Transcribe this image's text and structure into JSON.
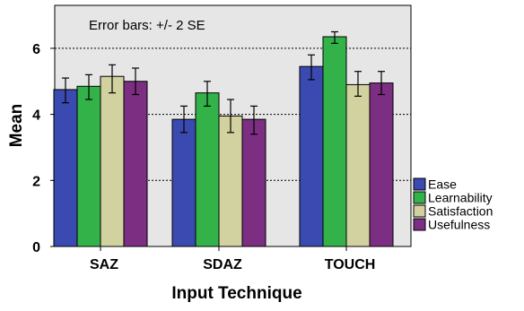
{
  "chart_data": {
    "type": "bar",
    "title": "",
    "annotation": "Error bars: +/- 2 SE",
    "xlabel": "Input Technique",
    "ylabel": "Mean",
    "categories": [
      "SAZ",
      "SDAZ",
      "TOUCH"
    ],
    "ylim": [
      0,
      7.3
    ],
    "yticks": [
      0,
      2,
      4,
      6
    ],
    "gridlines": [
      2,
      4,
      6
    ],
    "grid": "dashed horizontal",
    "legend_position": "right",
    "series": [
      {
        "name": "Ease",
        "color": "#3b4ab0",
        "values": [
          4.75,
          3.85,
          5.45
        ],
        "err_low": [
          4.35,
          3.45,
          5.05
        ],
        "err_high": [
          5.1,
          4.25,
          5.8
        ]
      },
      {
        "name": "Learnability",
        "color": "#34b24a",
        "values": [
          4.85,
          4.65,
          6.35
        ],
        "err_low": [
          4.45,
          4.25,
          6.15
        ],
        "err_high": [
          5.2,
          5.0,
          6.5
        ]
      },
      {
        "name": "Satisfaction",
        "color": "#d2d2a0",
        "values": [
          5.15,
          3.95,
          4.9
        ],
        "err_low": [
          4.65,
          3.45,
          4.55
        ],
        "err_high": [
          5.5,
          4.45,
          5.3
        ]
      },
      {
        "name": "Usefulness",
        "color": "#7b2e82",
        "values": [
          5.0,
          3.85,
          4.95
        ],
        "err_low": [
          4.6,
          3.4,
          4.6
        ],
        "err_high": [
          5.4,
          4.25,
          5.3
        ]
      }
    ]
  }
}
